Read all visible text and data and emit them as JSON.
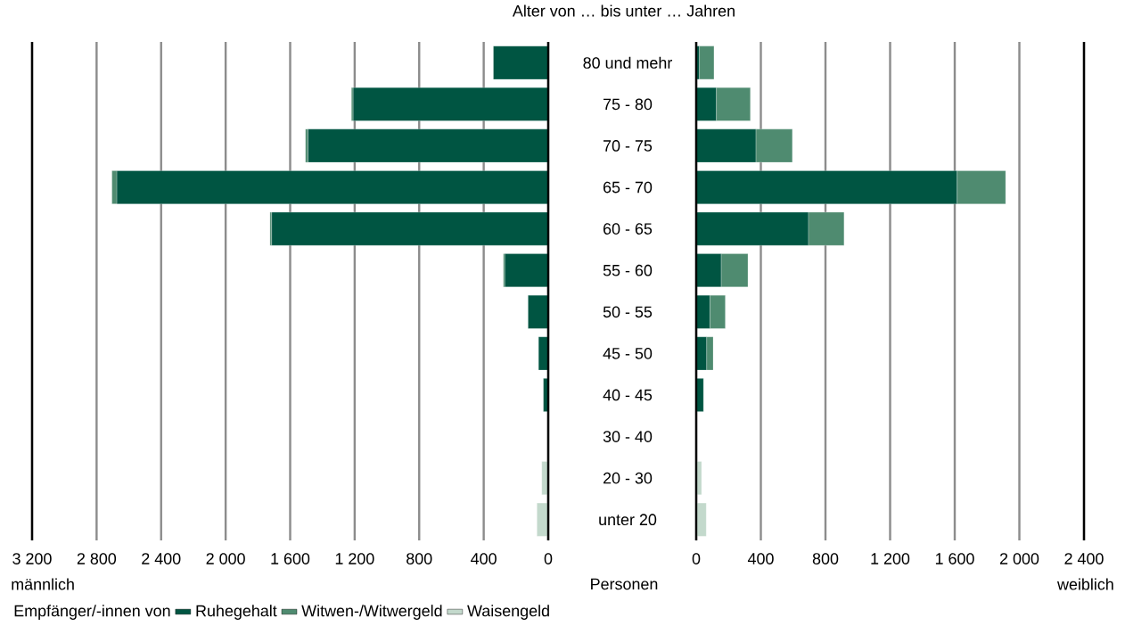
{
  "chart_data": [
    {
      "type": "bar",
      "orientation": "horizontal",
      "stacked": true,
      "xlabel": "männlich",
      "tick_labels": "x",
      "grid": "x",
      "legend": false,
      "categories": [
        null,
        null,
        null,
        null,
        null,
        null,
        null,
        null,
        null,
        null,
        null,
        null
      ],
      "xlim": [
        3200,
        0
      ],
      "xticks": [
        {
          "value": 3200,
          "label": "3 200"
        },
        {
          "value": 2800,
          "label": "2 800"
        },
        {
          "value": 2400,
          "label": "2 400"
        },
        {
          "value": 2000,
          "label": "2 000"
        },
        {
          "value": 1600,
          "label": "1 600"
        },
        {
          "value": 1200,
          "label": "1 200"
        },
        800,
        400,
        0
      ],
      "series": [
        {
          "color": "#005542",
          "values": [
            340,
            1210,
            1490,
            2675,
            1715,
            270,
            125,
            60,
            30,
            null,
            null,
            null
          ]
        },
        {
          "color": "#4f8b70",
          "values": [
            null,
            10,
            15,
            30,
            10,
            8,
            null,
            null,
            null,
            null,
            null,
            null
          ]
        },
        {
          "color": "#c3d9cc",
          "values": [
            null,
            null,
            null,
            null,
            null,
            null,
            null,
            null,
            null,
            null,
            40,
            70
          ]
        }
      ]
    },
    {
      "type": "bar",
      "orientation": "horizontal",
      "stacked": true,
      "title": "Alter von … bis unter … Jahren",
      "xlabel": "weiblich",
      "annotations": [
        "Personen"
      ],
      "grid": "x",
      "legend": "bottom",
      "legend_title": "Empfänger/-innen von",
      "categories": [
        "80 und mehr",
        "75 - 80",
        "70 - 75",
        "65 - 70",
        "60 - 65",
        "55 - 60",
        "50 - 55",
        "45 - 50",
        "40 - 45",
        "30 - 40",
        "20 - 30",
        "unter 20"
      ],
      "xlim": [
        0,
        2400
      ],
      "xticks": [
        0,
        400,
        800,
        {
          "value": 1200,
          "label": "1 200"
        },
        {
          "value": 1600,
          "label": "1 600"
        },
        {
          "value": 2000,
          "label": "2 000"
        },
        {
          "value": 2400,
          "label": "2 400"
        }
      ],
      "series": [
        {
          "name": "Ruhegehalt",
          "color": "#005542",
          "values": [
            20,
            125,
            370,
            1615,
            695,
            155,
            85,
            65,
            45,
            null,
            null,
            null
          ]
        },
        {
          "name": "Witwen-/Witwergeld",
          "color": "#4f8b70",
          "values": [
            90,
            210,
            225,
            300,
            220,
            165,
            95,
            40,
            null,
            null,
            null,
            null
          ]
        },
        {
          "name": "Waisengeld",
          "color": "#c3d9cc",
          "values": [
            null,
            null,
            null,
            null,
            null,
            null,
            null,
            null,
            null,
            null,
            33,
            62
          ]
        }
      ]
    }
  ]
}
